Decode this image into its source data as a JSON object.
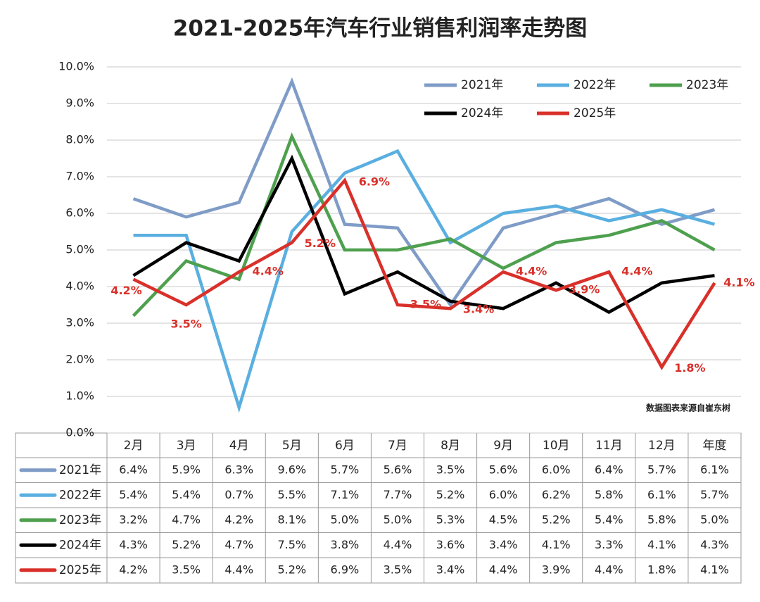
{
  "chart_data": {
    "type": "line",
    "title": "2021-2025年汽车行业销售利润率走势图",
    "annotation": "数据图表来源自崔东树",
    "categories": [
      "2月",
      "3月",
      "4月",
      "5月",
      "6月",
      "7月",
      "8月",
      "9月",
      "10月",
      "11月",
      "12月",
      "年度"
    ],
    "ylim": [
      0,
      10
    ],
    "yticks": [
      {
        "value": 0,
        "label": "0.0%"
      },
      {
        "value": 1,
        "label": "1.0%"
      },
      {
        "value": 2,
        "label": "2.0%"
      },
      {
        "value": 3,
        "label": "3.0%"
      },
      {
        "value": 4,
        "label": "4.0%"
      },
      {
        "value": 5,
        "label": "5.0%"
      },
      {
        "value": 6,
        "label": "6.0%"
      },
      {
        "value": 7,
        "label": "7.0%"
      },
      {
        "value": 8,
        "label": "8.0%"
      },
      {
        "value": 9,
        "label": "9.0%"
      },
      {
        "value": 10,
        "label": "10.0%"
      }
    ],
    "grid": true,
    "series": [
      {
        "name": "2021年",
        "color": "#7f9cc7",
        "values": [
          6.4,
          5.9,
          6.3,
          9.6,
          5.7,
          5.6,
          3.5,
          5.6,
          6.0,
          6.4,
          5.7,
          6.1
        ],
        "value_labels": [
          "6.4%",
          "5.9%",
          "6.3%",
          "9.6%",
          "5.7%",
          "5.6%",
          "3.5%",
          "5.6%",
          "6.0%",
          "6.4%",
          "5.7%",
          "6.1%"
        ]
      },
      {
        "name": "2022年",
        "color": "#5aafe0",
        "values": [
          5.4,
          5.4,
          0.7,
          5.5,
          7.1,
          7.7,
          5.2,
          6.0,
          6.2,
          5.8,
          6.1,
          5.7
        ],
        "value_labels": [
          "5.4%",
          "5.4%",
          "0.7%",
          "5.5%",
          "7.1%",
          "7.7%",
          "5.2%",
          "6.0%",
          "6.2%",
          "5.8%",
          "6.1%",
          "5.7%"
        ]
      },
      {
        "name": "2023年",
        "color": "#4ea04e",
        "values": [
          3.2,
          4.7,
          4.2,
          8.1,
          5.0,
          5.0,
          5.3,
          4.5,
          5.2,
          5.4,
          5.8,
          5.0
        ],
        "value_labels": [
          "3.2%",
          "4.7%",
          "4.2%",
          "8.1%",
          "5.0%",
          "5.0%",
          "5.3%",
          "4.5%",
          "5.2%",
          "5.4%",
          "5.8%",
          "5.0%"
        ]
      },
      {
        "name": "2024年",
        "color": "#000000",
        "values": [
          4.3,
          5.2,
          4.7,
          7.5,
          3.8,
          4.4,
          3.6,
          3.4,
          4.1,
          3.3,
          4.1,
          4.3
        ],
        "value_labels": [
          "4.3%",
          "5.2%",
          "4.7%",
          "7.5%",
          "3.8%",
          "4.4%",
          "3.6%",
          "3.4%",
          "4.1%",
          "3.3%",
          "4.1%",
          "4.3%"
        ]
      },
      {
        "name": "2025年",
        "color": "#d9302a",
        "show_labels": true,
        "values": [
          4.2,
          3.5,
          4.4,
          5.2,
          6.9,
          3.5,
          3.4,
          4.4,
          3.9,
          4.4,
          1.8,
          4.1
        ],
        "value_labels": [
          "4.2%",
          "3.5%",
          "4.4%",
          "5.2%",
          "6.9%",
          "3.5%",
          "3.4%",
          "4.4%",
          "3.9%",
          "4.4%",
          "1.8%",
          "4.1%"
        ]
      }
    ]
  }
}
